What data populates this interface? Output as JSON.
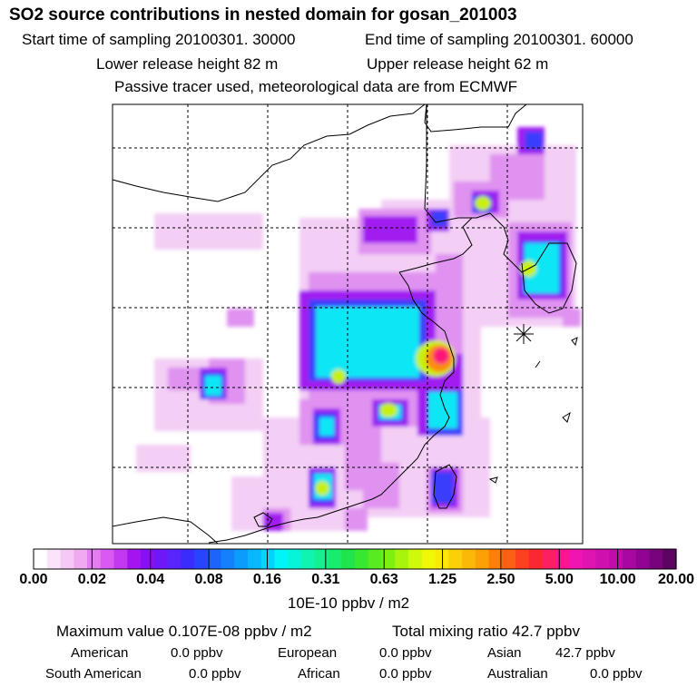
{
  "header": {
    "title": "SO2 source contributions in nested domain for gosan_201003",
    "start_time": "Start time of sampling 20100301. 30000",
    "end_time": "End time of sampling 20100301. 60000",
    "lower_height": "Lower release height   82 m",
    "upper_height": "Upper release height   62 m",
    "tracer_note": "Passive tracer used, meteorological data are from ECMWF"
  },
  "colorbar": {
    "ticks": [
      "0.00",
      "0.02",
      "0.04",
      "0.08",
      "0.16",
      "0.31",
      "0.63",
      "1.25",
      "2.50",
      "5.00",
      "10.00",
      "20.00"
    ],
    "units": "10E-10 ppbv / m2",
    "colors": [
      "#ffffff",
      "#fbe4fb",
      "#f5c8f5",
      "#efaaf2",
      "#e27ef0",
      "#d85af0",
      "#c23af0",
      "#a414f0",
      "#8a10f4",
      "#6e18f8",
      "#5a24fc",
      "#3a2cfc",
      "#2844fc",
      "#1c64fc",
      "#1480fc",
      "#0c9cfc",
      "#08b8fc",
      "#04d4fc",
      "#00f4f8",
      "#08f4d8",
      "#10f4b0",
      "#14f090",
      "#18ec6c",
      "#20e44c",
      "#38e830",
      "#58ec20",
      "#7cf010",
      "#a8f40c",
      "#d0f80c",
      "#f0f808",
      "#fce808",
      "#fcd008",
      "#fcb808",
      "#fca008",
      "#fc8008",
      "#fc6014",
      "#fc4020",
      "#fc2830",
      "#fc2060",
      "#fc1490",
      "#f014b0",
      "#e014b0",
      "#d010b0",
      "#c00ca8",
      "#a808a0",
      "#900494",
      "#78047c",
      "#5c0460"
    ]
  },
  "summary": {
    "maximum": "Maximum value  0.107E-08 ppbv / m2",
    "total": "Total mixing ratio       42.7 ppbv",
    "regions": [
      {
        "name": "American",
        "value": "0.0 ppbv"
      },
      {
        "name": "European",
        "value": "0.0 ppbv"
      },
      {
        "name": "Asian",
        "value": "42.7 ppbv"
      },
      {
        "name": "South American",
        "value": "0.0 ppbv"
      },
      {
        "name": "African",
        "value": "0.0 ppbv"
      },
      {
        "name": "Australian",
        "value": "0.0 ppbv"
      }
    ]
  }
}
